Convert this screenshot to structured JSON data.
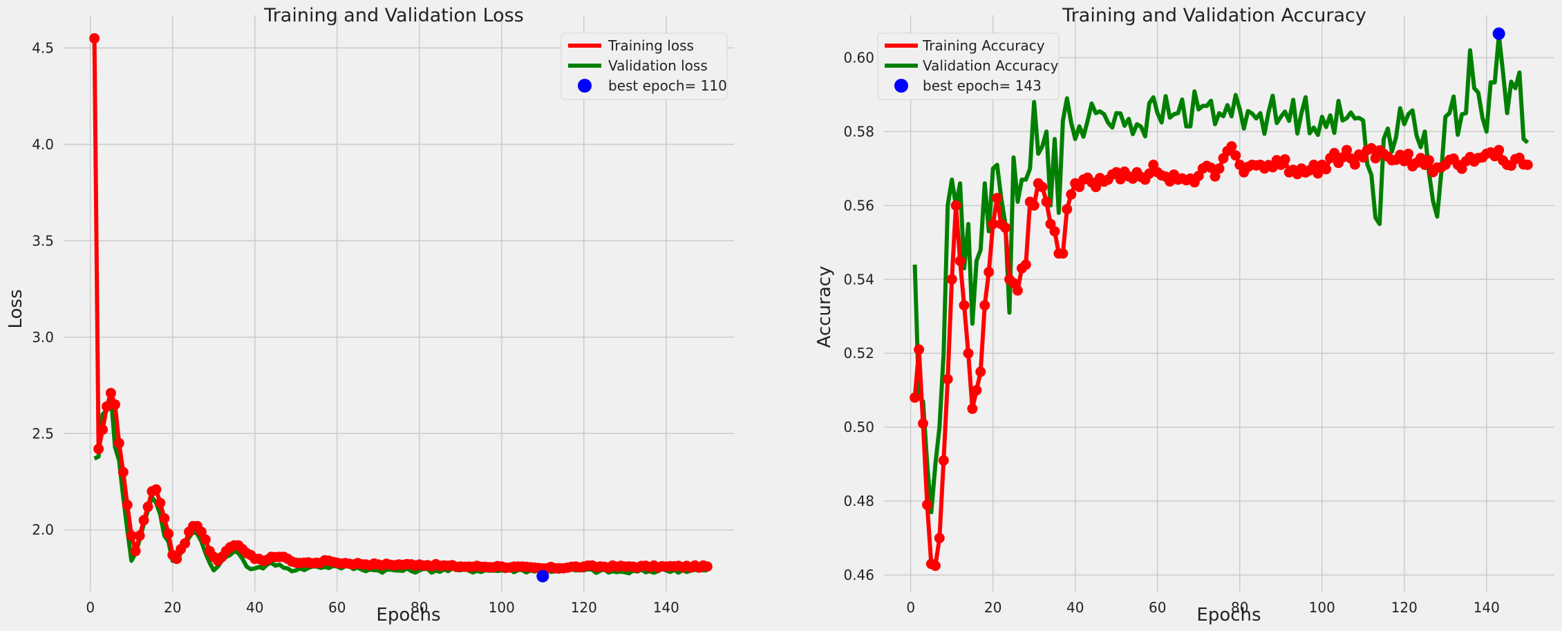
{
  "colors": {
    "background": "#f0f0f0",
    "grid": "#cbcbcb",
    "train": "#ff0000",
    "val": "#008000",
    "best": "#0000ff"
  },
  "chart_data": [
    {
      "type": "line",
      "title": "Training and Validation Loss",
      "xlabel": "Epochs",
      "ylabel": "Loss",
      "xlim": [
        -6.5,
        156.5
      ],
      "ylim": [
        1.68,
        4.67
      ],
      "xticks": [
        0,
        20,
        40,
        60,
        80,
        100,
        120,
        140
      ],
      "yticks": [
        2.0,
        2.5,
        3.0,
        3.5,
        4.0,
        4.5
      ],
      "ytick_decimals": 1,
      "grid": true,
      "legend_position": "top-right",
      "x": {
        "start": 1,
        "end": 150
      },
      "series": [
        {
          "name": "Training loss",
          "color": "#ff0000",
          "markers": true,
          "keyframes": [
            [
              1,
              4.55
            ],
            [
              2,
              2.42
            ],
            [
              3,
              2.52
            ],
            [
              4,
              2.64
            ],
            [
              5,
              2.71
            ],
            [
              6,
              2.65
            ],
            [
              7,
              2.45
            ],
            [
              8,
              2.3
            ],
            [
              9,
              2.13
            ],
            [
              10,
              1.97
            ],
            [
              11,
              1.89
            ],
            [
              12,
              1.97
            ],
            [
              13,
              2.05
            ],
            [
              14,
              2.12
            ],
            [
              15,
              2.2
            ],
            [
              16,
              2.21
            ],
            [
              17,
              2.14
            ],
            [
              18,
              2.06
            ],
            [
              19,
              1.98
            ],
            [
              20,
              1.87
            ],
            [
              21,
              1.85
            ],
            [
              22,
              1.9
            ],
            [
              23,
              1.93
            ],
            [
              24,
              1.99
            ],
            [
              25,
              2.02
            ],
            [
              26,
              2.02
            ],
            [
              27,
              1.99
            ],
            [
              28,
              1.95
            ],
            [
              29,
              1.89
            ],
            [
              30,
              1.86
            ],
            [
              31,
              1.84
            ],
            [
              32,
              1.86
            ],
            [
              33,
              1.89
            ],
            [
              34,
              1.91
            ],
            [
              35,
              1.92
            ],
            [
              36,
              1.92
            ],
            [
              37,
              1.9
            ],
            [
              38,
              1.88
            ],
            [
              40,
              1.85
            ],
            [
              42,
              1.84
            ],
            [
              44,
              1.86
            ],
            [
              46,
              1.86
            ],
            [
              48,
              1.85
            ],
            [
              50,
              1.83
            ],
            [
              55,
              1.83
            ],
            [
              58,
              1.84
            ],
            [
              60,
              1.83
            ],
            [
              70,
              1.82
            ],
            [
              80,
              1.82
            ],
            [
              90,
              1.81
            ],
            [
              100,
              1.81
            ],
            [
              110,
              1.8
            ],
            [
              120,
              1.81
            ],
            [
              130,
              1.81
            ],
            [
              140,
              1.81
            ],
            [
              150,
              1.81
            ]
          ],
          "noise": 0.006
        },
        {
          "name": "Validation loss",
          "color": "#008000",
          "markers": false,
          "keyframes": [
            [
              1,
              2.37
            ],
            [
              2,
              2.38
            ],
            [
              3,
              2.6
            ],
            [
              4,
              2.62
            ],
            [
              5,
              2.7
            ],
            [
              6,
              2.43
            ],
            [
              7,
              2.36
            ],
            [
              8,
              2.17
            ],
            [
              9,
              2.0
            ],
            [
              10,
              1.84
            ],
            [
              11,
              1.88
            ],
            [
              12,
              1.95
            ],
            [
              13,
              2.03
            ],
            [
              14,
              2.1
            ],
            [
              15,
              2.17
            ],
            [
              16,
              2.14
            ],
            [
              17,
              2.08
            ],
            [
              18,
              1.97
            ],
            [
              19,
              1.94
            ],
            [
              20,
              1.84
            ],
            [
              21,
              1.84
            ],
            [
              22,
              1.88
            ],
            [
              23,
              1.92
            ],
            [
              24,
              1.96
            ],
            [
              25,
              1.99
            ],
            [
              26,
              1.98
            ],
            [
              27,
              1.94
            ],
            [
              28,
              1.88
            ],
            [
              29,
              1.83
            ],
            [
              30,
              1.79
            ],
            [
              31,
              1.81
            ],
            [
              32,
              1.84
            ],
            [
              33,
              1.86
            ],
            [
              34,
              1.87
            ],
            [
              35,
              1.89
            ],
            [
              36,
              1.88
            ],
            [
              37,
              1.85
            ],
            [
              38,
              1.81
            ],
            [
              40,
              1.8
            ],
            [
              42,
              1.8
            ],
            [
              44,
              1.83
            ],
            [
              46,
              1.82
            ],
            [
              48,
              1.8
            ],
            [
              50,
              1.79
            ],
            [
              55,
              1.81
            ],
            [
              60,
              1.81
            ],
            [
              70,
              1.79
            ],
            [
              80,
              1.79
            ],
            [
              90,
              1.79
            ],
            [
              100,
              1.79
            ],
            [
              110,
              1.79
            ],
            [
              120,
              1.79
            ],
            [
              130,
              1.78
            ],
            [
              140,
              1.79
            ],
            [
              150,
              1.79
            ]
          ],
          "noise": 0.012
        }
      ],
      "best": {
        "label": "best epoch= 110",
        "x": 110,
        "y": 1.76,
        "color": "#0000ff"
      }
    },
    {
      "type": "line",
      "title": "Training and Validation Accuracy",
      "xlabel": "Epochs",
      "ylabel": "Accuracy",
      "xlim": [
        -6.5,
        156.5
      ],
      "ylim": [
        0.4555,
        0.6115
      ],
      "xticks": [
        0,
        20,
        40,
        60,
        80,
        100,
        120,
        140
      ],
      "yticks": [
        0.46,
        0.48,
        0.5,
        0.52,
        0.54,
        0.56,
        0.58,
        0.6
      ],
      "ytick_decimals": 2,
      "grid": true,
      "legend_position": "top-left",
      "x": {
        "start": 1,
        "end": 150
      },
      "series": [
        {
          "name": "Training Accuracy",
          "color": "#ff0000",
          "markers": true,
          "keyframes": [
            [
              1,
              0.508
            ],
            [
              2,
              0.521
            ],
            [
              3,
              0.501
            ],
            [
              4,
              0.479
            ],
            [
              5,
              0.463
            ],
            [
              6,
              0.4625
            ],
            [
              7,
              0.47
            ],
            [
              8,
              0.491
            ],
            [
              9,
              0.513
            ],
            [
              10,
              0.54
            ],
            [
              11,
              0.56
            ],
            [
              12,
              0.545
            ],
            [
              13,
              0.533
            ],
            [
              14,
              0.52
            ],
            [
              15,
              0.505
            ],
            [
              16,
              0.51
            ],
            [
              17,
              0.515
            ],
            [
              18,
              0.533
            ],
            [
              19,
              0.542
            ],
            [
              20,
              0.555
            ],
            [
              21,
              0.562
            ],
            [
              22,
              0.555
            ],
            [
              23,
              0.554
            ],
            [
              24,
              0.54
            ],
            [
              25,
              0.539
            ],
            [
              26,
              0.537
            ],
            [
              27,
              0.543
            ],
            [
              28,
              0.544
            ],
            [
              29,
              0.561
            ],
            [
              30,
              0.56
            ],
            [
              31,
              0.566
            ],
            [
              32,
              0.565
            ],
            [
              33,
              0.561
            ],
            [
              34,
              0.555
            ],
            [
              35,
              0.553
            ],
            [
              36,
              0.547
            ],
            [
              37,
              0.547
            ],
            [
              38,
              0.559
            ],
            [
              39,
              0.563
            ],
            [
              40,
              0.566
            ],
            [
              42,
              0.567
            ],
            [
              45,
              0.565
            ],
            [
              48,
              0.567
            ],
            [
              50,
              0.569
            ],
            [
              55,
              0.569
            ],
            [
              60,
              0.569
            ],
            [
              65,
              0.567
            ],
            [
              70,
              0.568
            ],
            [
              75,
              0.57
            ],
            [
              78,
              0.576
            ],
            [
              80,
              0.571
            ],
            [
              85,
              0.571
            ],
            [
              90,
              0.571
            ],
            [
              95,
              0.57
            ],
            [
              100,
              0.571
            ],
            [
              105,
              0.573
            ],
            [
              110,
              0.573
            ],
            [
              115,
              0.574
            ],
            [
              120,
              0.572
            ],
            [
              125,
              0.571
            ],
            [
              130,
              0.571
            ],
            [
              135,
              0.572
            ],
            [
              140,
              0.574
            ],
            [
              143,
              0.575
            ],
            [
              145,
              0.571
            ],
            [
              150,
              0.571
            ]
          ],
          "noise": 0.0022
        },
        {
          "name": "Validation Accuracy",
          "color": "#008000",
          "markers": false,
          "keyframes": [
            [
              1,
              0.544
            ],
            [
              2,
              0.508
            ],
            [
              3,
              0.507
            ],
            [
              4,
              0.49
            ],
            [
              5,
              0.477
            ],
            [
              6,
              0.49
            ],
            [
              7,
              0.5
            ],
            [
              8,
              0.52
            ],
            [
              9,
              0.56
            ],
            [
              10,
              0.567
            ],
            [
              11,
              0.56
            ],
            [
              12,
              0.566
            ],
            [
              13,
              0.543
            ],
            [
              14,
              0.555
            ],
            [
              15,
              0.528
            ],
            [
              16,
              0.545
            ],
            [
              17,
              0.548
            ],
            [
              18,
              0.566
            ],
            [
              19,
              0.553
            ],
            [
              20,
              0.57
            ],
            [
              21,
              0.571
            ],
            [
              22,
              0.562
            ],
            [
              23,
              0.555
            ],
            [
              24,
              0.531
            ],
            [
              25,
              0.573
            ],
            [
              26,
              0.561
            ],
            [
              27,
              0.567
            ],
            [
              28,
              0.567
            ],
            [
              29,
              0.57
            ],
            [
              30,
              0.588
            ],
            [
              31,
              0.574
            ],
            [
              32,
              0.576
            ],
            [
              33,
              0.58
            ],
            [
              34,
              0.56
            ],
            [
              35,
              0.578
            ],
            [
              36,
              0.558
            ],
            [
              37,
              0.583
            ],
            [
              38,
              0.589
            ],
            [
              40,
              0.578
            ],
            [
              45,
              0.585
            ],
            [
              50,
              0.585
            ],
            [
              55,
              0.582
            ],
            [
              60,
              0.585
            ],
            [
              65,
              0.585
            ],
            [
              70,
              0.586
            ],
            [
              75,
              0.585
            ],
            [
              80,
              0.586
            ],
            [
              85,
              0.585
            ],
            [
              90,
              0.584
            ],
            [
              95,
              0.585
            ],
            [
              100,
              0.584
            ],
            [
              105,
              0.583
            ],
            [
              110,
              0.583
            ],
            [
              114,
              0.555
            ],
            [
              115,
              0.578
            ],
            [
              120,
              0.582
            ],
            [
              125,
              0.58
            ],
            [
              128,
              0.557
            ],
            [
              130,
              0.584
            ],
            [
              135,
              0.585
            ],
            [
              136,
              0.602
            ],
            [
              140,
              0.58
            ],
            [
              143,
              0.606
            ],
            [
              145,
              0.585
            ],
            [
              148,
              0.596
            ],
            [
              149,
              0.578
            ],
            [
              150,
              0.577
            ]
          ],
          "noise": 0.0055
        }
      ],
      "best": {
        "label": "best epoch= 143",
        "x": 143,
        "y": 0.6065,
        "color": "#0000ff"
      }
    }
  ]
}
